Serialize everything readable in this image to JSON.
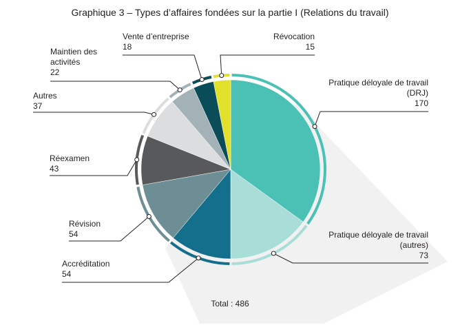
{
  "chart_data": {
    "type": "pie",
    "title": "Graphique 3 – Types d’affaires fondées sur la partie I (Relations du travail)",
    "total_label": "Total : 486",
    "categories": [
      "Pratique déloyale de travail (DRJ)",
      "Pratique déloyale de travail (autres)",
      "Accréditation",
      "Révision",
      "Réexamen",
      "Autres",
      "Maintien des activités",
      "Vente d’entreprise",
      "Révocation"
    ],
    "values": [
      170,
      73,
      54,
      54,
      43,
      37,
      22,
      18,
      15
    ],
    "colors": [
      "#4bc0b5",
      "#a9ddd7",
      "#146f8c",
      "#6e8e95",
      "#58595b",
      "#dcdddf",
      "#a2b2b6",
      "#0a4c57",
      "#e1e12b"
    ]
  }
}
